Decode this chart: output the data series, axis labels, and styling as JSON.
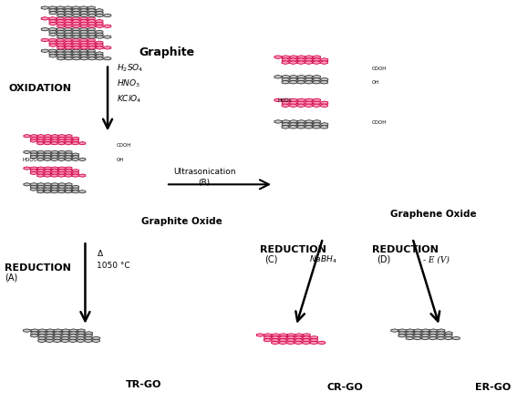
{
  "title": "",
  "bg_color": "#ffffff",
  "graphite_label": "Graphite",
  "graphite_oxide_label": "Graphite Oxide",
  "graphene_oxide_label": "Graphene Oxide",
  "tr_go_label": "TR-GO",
  "cr_go_label": "CR-GO",
  "er_go_label": "ER-GO",
  "oxidation_label": "OXIDATION",
  "reduction_a_label": "REDUCTION",
  "reduction_a_sub": "(A)",
  "reduction_c_label": "REDUCTION",
  "reduction_c_sub": "(C)",
  "reduction_d_label": "REDUCTION",
  "reduction_d_sub": "(D)",
  "oxidation_reagents": "H₂SO₄\nHNO₃\nKClO₄",
  "reduction_a_reagents": "Δ\n1050 °C",
  "ultrasonication_label": "Ultrasonication\n(B)",
  "reduction_c_reagents": "NaBH₄",
  "reduction_d_reagents": "- E (V)",
  "pink_color": "#FF6699",
  "pink_fill": "#FFB3CC",
  "dark_color": "#333333",
  "gray_color": "#888888",
  "red_color": "#FF0000",
  "arrow_color": "#000000"
}
